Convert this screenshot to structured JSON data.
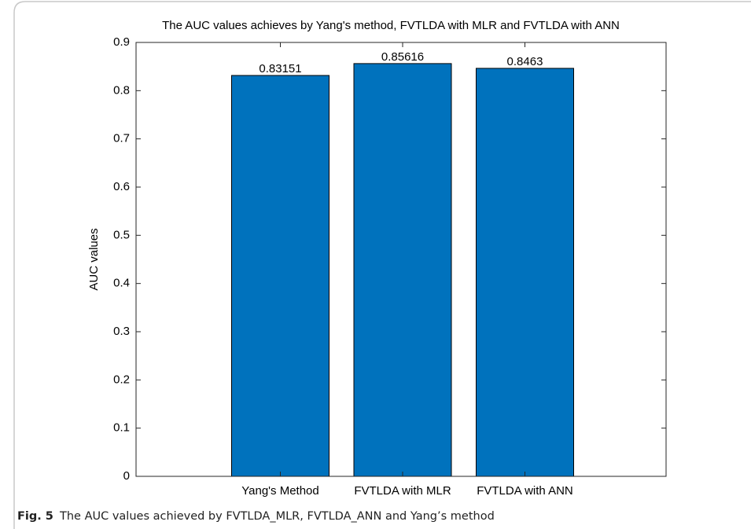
{
  "chart_data": {
    "type": "bar",
    "title": "The AUC values achieves by Yang's method, FVTLDA with MLR and FVTLDA with ANN",
    "y_label": "AUC values",
    "categories": [
      "Yang's Method",
      "FVTLDA with MLR",
      "FVTLDA with ANN"
    ],
    "values": [
      0.83151,
      0.85616,
      0.8463
    ],
    "color": "#0072bd",
    "ylim": [
      0,
      0.9
    ],
    "yticks": [
      0,
      0.1,
      0.2,
      0.3,
      0.4,
      0.5,
      0.6,
      0.7,
      0.8,
      0.9
    ],
    "grid": false
  },
  "caption": {
    "label": "Fig. 5",
    "text": "The AUC values achieved by FVTLDA_MLR, FVTLDA_ANN and Yang’s method"
  }
}
